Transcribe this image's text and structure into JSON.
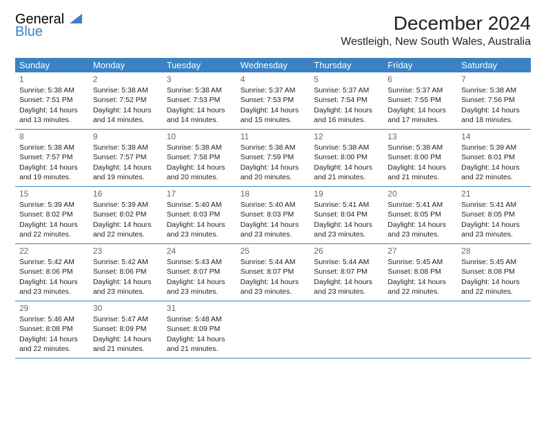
{
  "logo": {
    "line1": "General",
    "line2": "Blue"
  },
  "title": "December 2024",
  "location": "Westleigh, New South Wales, Australia",
  "colors": {
    "header_bg": "#3a82c4",
    "header_text": "#ffffff",
    "border": "#3a82c4",
    "daynum": "#666666",
    "logo_blue": "#3a82c4"
  },
  "day_headers": [
    "Sunday",
    "Monday",
    "Tuesday",
    "Wednesday",
    "Thursday",
    "Friday",
    "Saturday"
  ],
  "days": [
    {
      "n": "1",
      "sunrise": "5:38 AM",
      "sunset": "7:51 PM",
      "dl": "14 hours and 13 minutes."
    },
    {
      "n": "2",
      "sunrise": "5:38 AM",
      "sunset": "7:52 PM",
      "dl": "14 hours and 14 minutes."
    },
    {
      "n": "3",
      "sunrise": "5:38 AM",
      "sunset": "7:53 PM",
      "dl": "14 hours and 14 minutes."
    },
    {
      "n": "4",
      "sunrise": "5:37 AM",
      "sunset": "7:53 PM",
      "dl": "14 hours and 15 minutes."
    },
    {
      "n": "5",
      "sunrise": "5:37 AM",
      "sunset": "7:54 PM",
      "dl": "14 hours and 16 minutes."
    },
    {
      "n": "6",
      "sunrise": "5:37 AM",
      "sunset": "7:55 PM",
      "dl": "14 hours and 17 minutes."
    },
    {
      "n": "7",
      "sunrise": "5:38 AM",
      "sunset": "7:56 PM",
      "dl": "14 hours and 18 minutes."
    },
    {
      "n": "8",
      "sunrise": "5:38 AM",
      "sunset": "7:57 PM",
      "dl": "14 hours and 19 minutes."
    },
    {
      "n": "9",
      "sunrise": "5:38 AM",
      "sunset": "7:57 PM",
      "dl": "14 hours and 19 minutes."
    },
    {
      "n": "10",
      "sunrise": "5:38 AM",
      "sunset": "7:58 PM",
      "dl": "14 hours and 20 minutes."
    },
    {
      "n": "11",
      "sunrise": "5:38 AM",
      "sunset": "7:59 PM",
      "dl": "14 hours and 20 minutes."
    },
    {
      "n": "12",
      "sunrise": "5:38 AM",
      "sunset": "8:00 PM",
      "dl": "14 hours and 21 minutes."
    },
    {
      "n": "13",
      "sunrise": "5:38 AM",
      "sunset": "8:00 PM",
      "dl": "14 hours and 21 minutes."
    },
    {
      "n": "14",
      "sunrise": "5:39 AM",
      "sunset": "8:01 PM",
      "dl": "14 hours and 22 minutes."
    },
    {
      "n": "15",
      "sunrise": "5:39 AM",
      "sunset": "8:02 PM",
      "dl": "14 hours and 22 minutes."
    },
    {
      "n": "16",
      "sunrise": "5:39 AM",
      "sunset": "8:02 PM",
      "dl": "14 hours and 22 minutes."
    },
    {
      "n": "17",
      "sunrise": "5:40 AM",
      "sunset": "8:03 PM",
      "dl": "14 hours and 23 minutes."
    },
    {
      "n": "18",
      "sunrise": "5:40 AM",
      "sunset": "8:03 PM",
      "dl": "14 hours and 23 minutes."
    },
    {
      "n": "19",
      "sunrise": "5:41 AM",
      "sunset": "8:04 PM",
      "dl": "14 hours and 23 minutes."
    },
    {
      "n": "20",
      "sunrise": "5:41 AM",
      "sunset": "8:05 PM",
      "dl": "14 hours and 23 minutes."
    },
    {
      "n": "21",
      "sunrise": "5:41 AM",
      "sunset": "8:05 PM",
      "dl": "14 hours and 23 minutes."
    },
    {
      "n": "22",
      "sunrise": "5:42 AM",
      "sunset": "8:06 PM",
      "dl": "14 hours and 23 minutes."
    },
    {
      "n": "23",
      "sunrise": "5:42 AM",
      "sunset": "8:06 PM",
      "dl": "14 hours and 23 minutes."
    },
    {
      "n": "24",
      "sunrise": "5:43 AM",
      "sunset": "8:07 PM",
      "dl": "14 hours and 23 minutes."
    },
    {
      "n": "25",
      "sunrise": "5:44 AM",
      "sunset": "8:07 PM",
      "dl": "14 hours and 23 minutes."
    },
    {
      "n": "26",
      "sunrise": "5:44 AM",
      "sunset": "8:07 PM",
      "dl": "14 hours and 23 minutes."
    },
    {
      "n": "27",
      "sunrise": "5:45 AM",
      "sunset": "8:08 PM",
      "dl": "14 hours and 22 minutes."
    },
    {
      "n": "28",
      "sunrise": "5:45 AM",
      "sunset": "8:08 PM",
      "dl": "14 hours and 22 minutes."
    },
    {
      "n": "29",
      "sunrise": "5:46 AM",
      "sunset": "8:08 PM",
      "dl": "14 hours and 22 minutes."
    },
    {
      "n": "30",
      "sunrise": "5:47 AM",
      "sunset": "8:09 PM",
      "dl": "14 hours and 21 minutes."
    },
    {
      "n": "31",
      "sunrise": "5:48 AM",
      "sunset": "8:09 PM",
      "dl": "14 hours and 21 minutes."
    }
  ],
  "labels": {
    "sunrise": "Sunrise:",
    "sunset": "Sunset:",
    "daylight": "Daylight:"
  }
}
